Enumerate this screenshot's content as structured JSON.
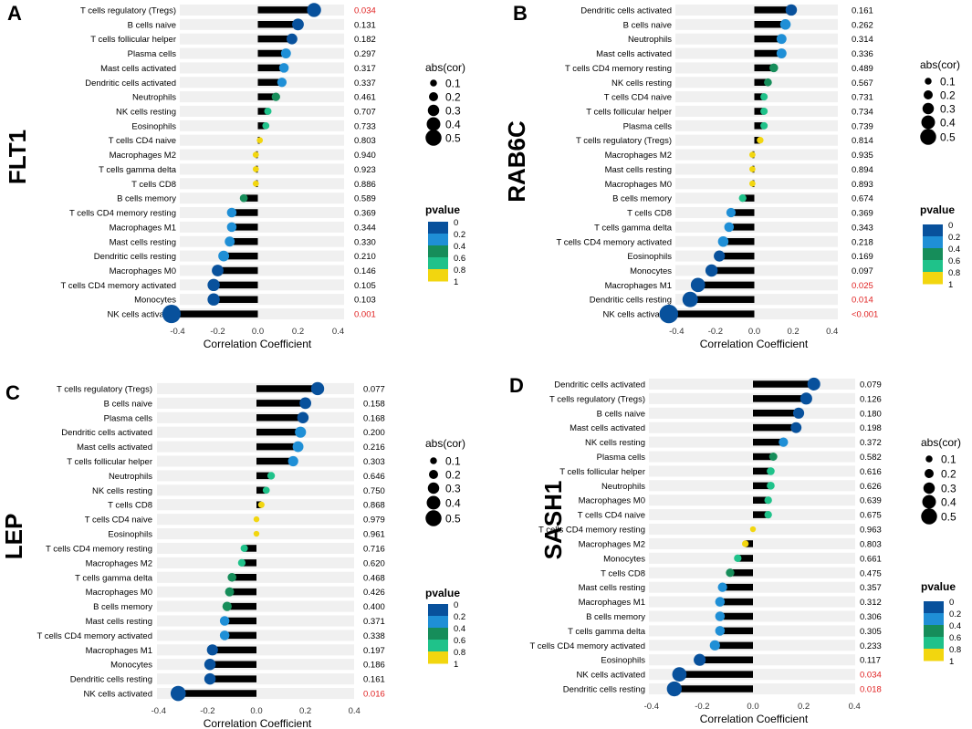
{
  "figure": {
    "legend_size_title": "abs(cor)",
    "legend_size_labels": [
      "0.1",
      "0.2",
      "0.3",
      "0.4",
      "0.5"
    ],
    "legend_color_title": "pvalue",
    "legend_color_labels": [
      "0",
      "0.2",
      "0.4",
      "0.6",
      "0.8",
      "1"
    ],
    "legend_colors": [
      "#08519c",
      "#1f8fd6",
      "#168d5a",
      "#1fc28a",
      "#f2d60f"
    ],
    "significant_color": "#e02020",
    "text_color": "#000000"
  },
  "chart_data": [
    {
      "type": "lollipop",
      "panel_label": "A",
      "gene": "FLT1",
      "xlabel": "Correlation Coefficient",
      "xlim": [
        -0.45,
        0.45
      ],
      "xticks": [
        "-0.4",
        "-0.2",
        "0.0",
        "0.2",
        "0.4"
      ],
      "categories": [
        "T cells regulatory (Tregs)",
        "B cells naive",
        "T cells follicular helper",
        "Plasma cells",
        "Mast cells activated",
        "Dendritic cells activated",
        "Neutrophils",
        "NK cells resting",
        "Eosinophils",
        "T cells CD4 naive",
        "Macrophages M2",
        "T cells gamma delta",
        "T cells CD8",
        "B cells memory",
        "T cells CD4 memory resting",
        "Macrophages M1",
        "Mast cells resting",
        "Dendritic cells resting",
        "Macrophages M0",
        "T cells CD4 memory activated",
        "Monocytes",
        "NK cells activated"
      ],
      "cor": [
        0.28,
        0.2,
        0.17,
        0.14,
        0.13,
        0.12,
        0.09,
        0.05,
        0.04,
        0.01,
        -0.01,
        -0.01,
        -0.01,
        -0.07,
        -0.13,
        -0.13,
        -0.14,
        -0.17,
        -0.2,
        -0.22,
        -0.22,
        -0.43
      ],
      "pvalue_labels": [
        "0.034",
        "0.131",
        "0.182",
        "0.297",
        "0.317",
        "0.337",
        "0.461",
        "0.707",
        "0.733",
        "0.803",
        "0.940",
        "0.923",
        "0.886",
        "0.589",
        "0.369",
        "0.344",
        "0.330",
        "0.210",
        "0.146",
        "0.105",
        "0.103",
        "0.001"
      ]
    },
    {
      "type": "lollipop",
      "panel_label": "B",
      "gene": "RAB6C",
      "xlabel": "Correlation Coefficient",
      "xlim": [
        -0.45,
        0.45
      ],
      "xticks": [
        "-0.4",
        "-0.2",
        "0.0",
        "0.2",
        "0.4"
      ],
      "categories": [
        "Dendritic cells activated",
        "B cells naive",
        "Neutrophils",
        "Mast cells activated",
        "T cells CD4 memory resting",
        "NK cells resting",
        "T cells CD4 naive",
        "T cells follicular helper",
        "Plasma cells",
        "T cells regulatory (Tregs)",
        "Macrophages M2",
        "Mast cells resting",
        "Macrophages M0",
        "B cells memory",
        "T cells CD8",
        "T cells gamma delta",
        "T cells CD4 memory activated",
        "Eosinophils",
        "Monocytes",
        "Macrophages M1",
        "Dendritic cells resting",
        "NK cells activated"
      ],
      "cor": [
        0.19,
        0.16,
        0.14,
        0.14,
        0.1,
        0.07,
        0.05,
        0.05,
        0.05,
        0.03,
        -0.01,
        -0.01,
        -0.01,
        -0.06,
        -0.12,
        -0.13,
        -0.16,
        -0.18,
        -0.22,
        -0.29,
        -0.33,
        -0.44
      ],
      "pvalue_labels": [
        "0.161",
        "0.262",
        "0.314",
        "0.336",
        "0.489",
        "0.567",
        "0.731",
        "0.734",
        "0.739",
        "0.814",
        "0.935",
        "0.894",
        "0.893",
        "0.674",
        "0.369",
        "0.343",
        "0.218",
        "0.169",
        "0.097",
        "0.025",
        "0.014",
        "<0.001"
      ]
    },
    {
      "type": "lollipop",
      "panel_label": "C",
      "gene": "LEP",
      "xlabel": "Correlation Coefficient",
      "xlim": [
        -0.4,
        0.4
      ],
      "xticks": [
        "-0.4",
        "-0.2",
        "0.0",
        "0.2",
        "0.4"
      ],
      "categories": [
        "T cells regulatory (Tregs)",
        "B cells naive",
        "Plasma cells",
        "Dendritic cells activated",
        "Mast cells activated",
        "T cells follicular helper",
        "Neutrophils",
        "NK cells resting",
        "T cells CD8",
        "T cells CD4 naive",
        "Eosinophils",
        "T cells CD4 memory resting",
        "Macrophages M2",
        "T cells gamma delta",
        "Macrophages M0",
        "B cells memory",
        "Mast cells resting",
        "T cells CD4 memory activated",
        "Macrophages M1",
        "Monocytes",
        "Dendritic cells resting",
        "NK cells activated"
      ],
      "cor": [
        0.25,
        0.2,
        0.19,
        0.18,
        0.17,
        0.15,
        0.06,
        0.04,
        0.02,
        0.0,
        0.0,
        -0.05,
        -0.06,
        -0.1,
        -0.11,
        -0.12,
        -0.13,
        -0.13,
        -0.18,
        -0.19,
        -0.19,
        -0.32
      ],
      "pvalue_labels": [
        "0.077",
        "0.158",
        "0.168",
        "0.200",
        "0.216",
        "0.303",
        "0.646",
        "0.750",
        "0.868",
        "0.979",
        "0.961",
        "0.716",
        "0.620",
        "0.468",
        "0.426",
        "0.400",
        "0.371",
        "0.338",
        "0.197",
        "0.186",
        "0.161",
        "0.016"
      ]
    },
    {
      "type": "lollipop",
      "panel_label": "D",
      "gene": "SASH1",
      "xlabel": "Correlation Coefficient",
      "xlim": [
        -0.4,
        0.4
      ],
      "xticks": [
        "-0.4",
        "-0.2",
        "0.0",
        "0.2",
        "0.4"
      ],
      "categories": [
        "Dendritic cells activated",
        "T cells regulatory (Tregs)",
        "B cells naive",
        "Mast cells activated",
        "NK cells resting",
        "Plasma cells",
        "T cells follicular helper",
        "Neutrophils",
        "Macrophages M0",
        "T cells CD4 naive",
        "T cells CD4 memory resting",
        "Macrophages M2",
        "Monocytes",
        "T cells CD8",
        "Mast cells resting",
        "Macrophages M1",
        "B cells memory",
        "T cells gamma delta",
        "T cells CD4 memory activated",
        "Eosinophils",
        "NK cells activated",
        "Dendritic cells resting"
      ],
      "cor": [
        0.24,
        0.21,
        0.18,
        0.17,
        0.12,
        0.08,
        0.07,
        0.07,
        0.06,
        0.06,
        0.0,
        -0.03,
        -0.06,
        -0.09,
        -0.12,
        -0.13,
        -0.13,
        -0.13,
        -0.15,
        -0.21,
        -0.29,
        -0.31
      ],
      "pvalue_labels": [
        "0.079",
        "0.126",
        "0.180",
        "0.198",
        "0.372",
        "0.582",
        "0.616",
        "0.626",
        "0.639",
        "0.675",
        "0.963",
        "0.803",
        "0.661",
        "0.475",
        "0.357",
        "0.312",
        "0.306",
        "0.305",
        "0.233",
        "0.117",
        "0.034",
        "0.018"
      ]
    }
  ]
}
